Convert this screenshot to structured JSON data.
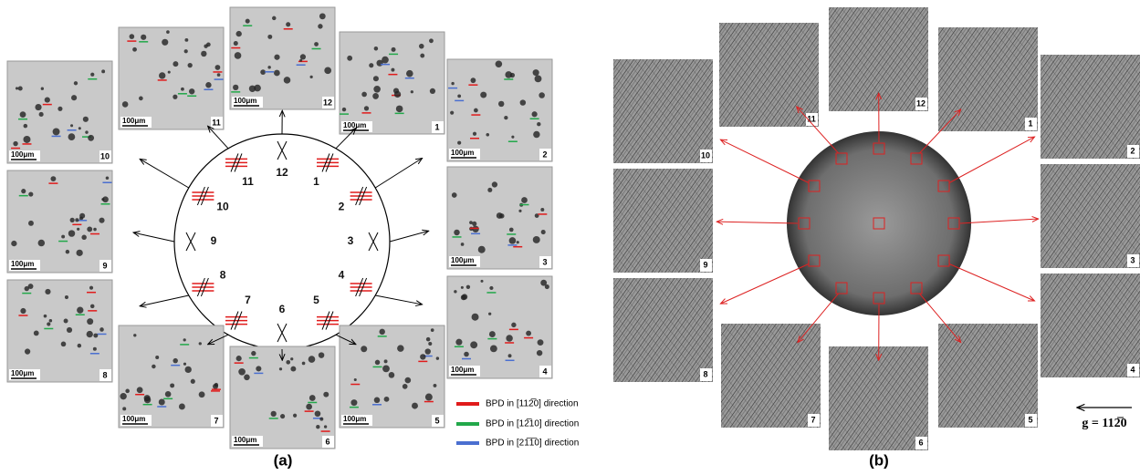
{
  "panel_a": {
    "positions": [
      "1",
      "2",
      "3",
      "4",
      "5",
      "6",
      "7",
      "8",
      "9",
      "10",
      "11",
      "12"
    ],
    "scale_bar": "100μm",
    "legend": [
      "BPD in [112̅0] direction",
      "BPD in [12̅10] direction",
      "BPD in [21̅1̅0] direction"
    ],
    "caption": "(a)"
  },
  "panel_b": {
    "positions": [
      "1",
      "2",
      "3",
      "4",
      "5",
      "6",
      "7",
      "8",
      "9",
      "10",
      "11",
      "12"
    ],
    "g_label": "g = 112̅0",
    "caption": "(b)"
  }
}
